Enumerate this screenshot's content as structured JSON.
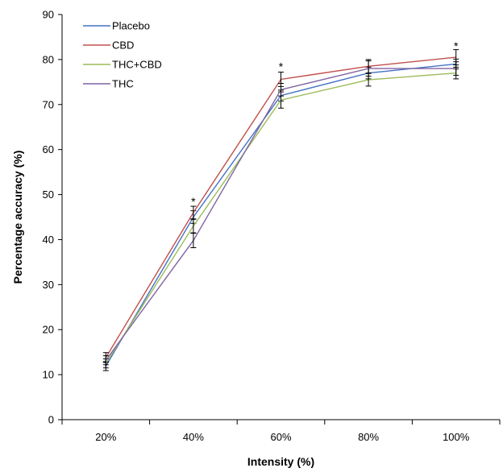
{
  "chart_data": {
    "type": "line",
    "xlabel": "Intensity (%)",
    "ylabel": "Percentage accuracy (%)",
    "categories": [
      "20%",
      "40%",
      "60%",
      "80%",
      "100%"
    ],
    "ylim": [
      0,
      90
    ],
    "yticks": [
      0,
      10,
      20,
      30,
      40,
      50,
      60,
      70,
      80,
      90
    ],
    "grid": false,
    "legend_position": "top-left",
    "series": [
      {
        "name": "Placebo",
        "color": "#4472C4",
        "values": [
          11.9,
          45.0,
          72.0,
          77.0,
          79.0
        ],
        "errors": [
          1.0,
          1.4,
          1.2,
          1.3,
          1.1
        ]
      },
      {
        "name": "CBD",
        "color": "#C0504D",
        "values": [
          13.8,
          46.0,
          75.6,
          78.5,
          80.5
        ],
        "errors": [
          1.1,
          1.4,
          1.6,
          1.5,
          1.7
        ]
      },
      {
        "name": "THC+CBD",
        "color": "#9BBB59",
        "values": [
          12.5,
          43.0,
          71.0,
          75.5,
          77.0
        ],
        "errors": [
          1.0,
          1.5,
          1.8,
          1.4,
          1.3
        ]
      },
      {
        "name": "THC",
        "color": "#8064A2",
        "values": [
          13.2,
          39.8,
          73.3,
          78.0,
          78.0
        ],
        "errors": [
          1.0,
          1.6,
          1.4,
          1.7,
          1.5
        ]
      }
    ],
    "annotations": [
      {
        "text": "*",
        "category": "40%",
        "y": 48.5
      },
      {
        "text": "*",
        "category": "60%",
        "y": 78.5
      },
      {
        "text": "*",
        "category": "100%",
        "y": 83.0
      }
    ]
  }
}
